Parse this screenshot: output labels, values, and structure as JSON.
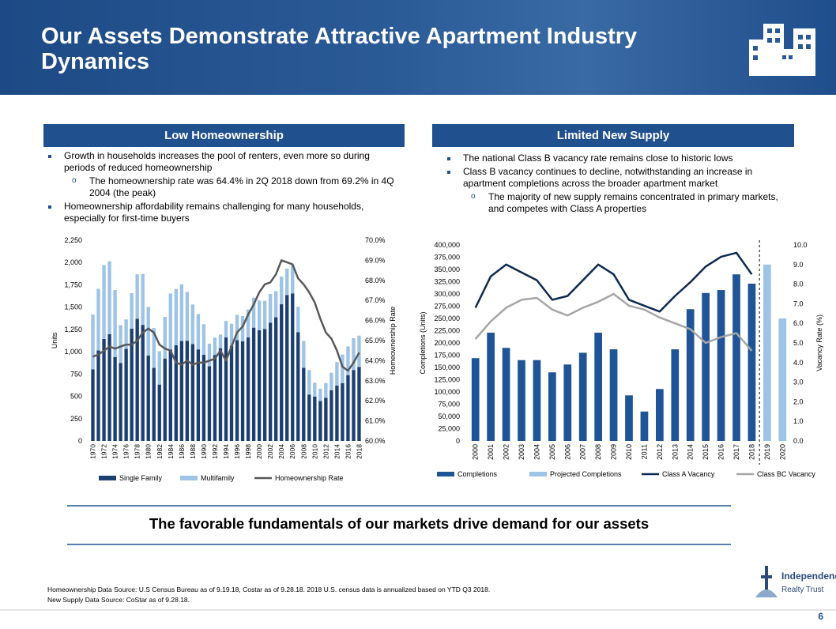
{
  "header": {
    "title": "Our Assets Demonstrate Attractive Apartment Industry Dynamics"
  },
  "left_panel": {
    "heading": "Low Homeownership",
    "bullets": [
      {
        "text": "Growth in households increases the pool of renters, even more so during periods of reduced homeownership",
        "subitems": [
          "The homeownership rate was 64.4% in 2Q 2018 down from 69.2% in 4Q 2004 (the peak)"
        ]
      },
      {
        "text": "Homeownership affordability remains challenging for many households, especially for first-time buyers"
      }
    ]
  },
  "right_panel": {
    "heading": "Limited New Supply",
    "bullets": [
      {
        "text": "The national Class B vacancy rate remains close to historic lows"
      },
      {
        "text": "Class B vacancy continues to decline, notwithstanding an increase in apartment completions across the broader apartment market",
        "subitems": [
          "The majority of new supply remains concentrated in primary markets, and competes with Class A properties"
        ]
      }
    ]
  },
  "chart_data": [
    {
      "type": "bar",
      "stacked": true,
      "y_label": "Units",
      "y2_label": "Homeownership Rate",
      "categories": [
        "1970",
        null,
        "1972",
        null,
        "1974",
        null,
        "1976",
        null,
        "1978",
        null,
        "1980",
        null,
        "1982",
        null,
        "1984",
        null,
        "1986",
        null,
        "1988",
        null,
        "1990",
        null,
        "1992",
        null,
        "1994",
        null,
        "1996",
        null,
        "1998",
        null,
        "2000",
        null,
        "2002",
        null,
        "2004",
        null,
        "2006",
        null,
        "2008",
        null,
        "2010",
        null,
        "2012",
        null,
        "2014",
        null,
        "2016",
        null,
        "2018"
      ],
      "series": [
        {
          "name": "Single Family",
          "type": "bar",
          "color": "#1c3f72",
          "values": [
            802,
            1014,
            1143,
            1197,
            940,
            875,
            1034,
            1258,
            1369,
            1301,
            957,
            819,
            632,
            924,
            1025,
            1072,
            1120,
            1123,
            1085,
            1026,
            966,
            838,
            964,
            1039,
            1160,
            1066,
            1129,
            1116,
            1160,
            1270,
            1242,
            1256,
            1325,
            1386,
            1532,
            1636,
            1654,
            1218,
            819,
            520,
            496,
            447,
            483,
            569,
            620,
            648,
            738,
            795,
            830
          ]
        },
        {
          "name": "Multifamily",
          "type": "bar",
          "color": "#9dc3e6",
          "values": [
            616,
            692,
            828,
            817,
            752,
            422,
            328,
            399,
            499,
            570,
            545,
            447,
            374,
            466,
            627,
            631,
            636,
            546,
            445,
            397,
            342,
            253,
            194,
            154,
            187,
            247,
            284,
            284,
            314,
            335,
            332,
            315,
            323,
            293,
            310,
            295,
            325,
            285,
            301,
            274,
            156,
            138,
            166,
            195,
            264,
            320,
            321,
            357,
            350
          ]
        },
        {
          "name": "Homeownership Rate",
          "type": "line",
          "axis": "y2",
          "color": "#595959",
          "values": [
            64.2,
            64.3,
            64.5,
            64.7,
            64.6,
            64.7,
            64.8,
            64.8,
            65.0,
            65.4,
            65.6,
            65.4,
            64.8,
            64.6,
            64.5,
            63.9,
            63.8,
            64.0,
            63.8,
            63.9,
            63.9,
            64.0,
            64.1,
            64.5,
            64.0,
            64.7,
            65.4,
            65.7,
            66.3,
            66.8,
            67.4,
            67.8,
            67.9,
            68.3,
            69.0,
            68.9,
            68.8,
            68.1,
            67.8,
            67.4,
            66.9,
            66.1,
            65.4,
            65.1,
            64.5,
            63.7,
            63.5,
            63.9,
            64.4
          ]
        }
      ],
      "ylim": [
        0,
        2250
      ],
      "yticks": [
        0,
        250,
        500,
        750,
        {
          "value": 1000,
          "label": "1,000"
        },
        {
          "value": 1250,
          "label": "1,250"
        },
        {
          "value": 1500,
          "label": "1,500"
        },
        {
          "value": 1750,
          "label": "1,750"
        },
        {
          "value": 2000,
          "label": "2,000"
        },
        {
          "value": 2250,
          "label": "2,250"
        }
      ],
      "y2lim": [
        60,
        70
      ],
      "y2ticks": [
        {
          "value": 60,
          "label": "60.0%"
        },
        {
          "value": 61,
          "label": "61.0%"
        },
        {
          "value": 62,
          "label": "62.0%"
        },
        {
          "value": 63,
          "label": "63.0%"
        },
        {
          "value": 64,
          "label": "64.0%"
        },
        {
          "value": 65,
          "label": "65.0%"
        },
        {
          "value": 66,
          "label": "66.0%"
        },
        {
          "value": 67,
          "label": "67.0%"
        },
        {
          "value": 68,
          "label": "68.0%"
        },
        {
          "value": 69,
          "label": "69.0%"
        },
        {
          "value": 70,
          "label": "70.0%"
        }
      ]
    },
    {
      "type": "bar",
      "stacked": false,
      "y_label": "Completions (Units)",
      "y2_label": "Vacancy Rate (%)",
      "categories": [
        "2000",
        "2001",
        "2002",
        "2003",
        "2004",
        "2005",
        "2006",
        "2007",
        "2008",
        "2009",
        "2010",
        "2011",
        "2012",
        "2013",
        "2014",
        "2015",
        "2016",
        "2017",
        "2018",
        "2019",
        "2020"
      ],
      "series": [
        {
          "name": "Completions",
          "type": "bar",
          "color": "#1f5597",
          "values": [
            169000,
            221000,
            190000,
            165000,
            165000,
            140000,
            156000,
            180000,
            221000,
            187000,
            93000,
            60000,
            106000,
            187000,
            269000,
            302000,
            308000,
            340000,
            321000,
            null,
            null
          ]
        },
        {
          "name": "Projected Completions",
          "type": "bar",
          "color": "#9dc3e6",
          "values": [
            null,
            null,
            null,
            null,
            null,
            null,
            null,
            null,
            null,
            null,
            null,
            null,
            null,
            null,
            null,
            null,
            null,
            null,
            null,
            360000,
            250000
          ]
        },
        {
          "name": "Class A Vacancy",
          "type": "line",
          "axis": "y2",
          "color": "#0d2a52",
          "values": [
            6.8,
            8.4,
            9.0,
            8.6,
            8.2,
            7.2,
            7.4,
            8.2,
            9.0,
            8.5,
            7.2,
            6.9,
            6.6,
            7.4,
            8.1,
            8.9,
            9.4,
            9.6,
            8.5,
            null,
            null
          ]
        },
        {
          "name": "Class BC Vacancy",
          "type": "line",
          "axis": "y2",
          "color": "#a6a6a6",
          "values": [
            5.2,
            6.1,
            6.8,
            7.2,
            7.3,
            6.7,
            6.4,
            6.8,
            7.1,
            7.5,
            6.9,
            6.7,
            6.3,
            6.0,
            5.7,
            5.0,
            5.3,
            5.5,
            4.6,
            null,
            null
          ]
        }
      ],
      "ylim": [
        0,
        400000
      ],
      "yticks": [
        0,
        {
          "value": 25000,
          "label": "25,000"
        },
        {
          "value": 50000,
          "label": "50,000"
        },
        {
          "value": 75000,
          "label": "75,000"
        },
        {
          "value": 100000,
          "label": "100,000"
        },
        {
          "value": 125000,
          "label": "125,000"
        },
        {
          "value": 150000,
          "label": "150,000"
        },
        {
          "value": 175000,
          "label": "175,000"
        },
        {
          "value": 200000,
          "label": "200,000"
        },
        {
          "value": 225000,
          "label": "225,000"
        },
        {
          "value": 250000,
          "label": "250,000"
        },
        {
          "value": 275000,
          "label": "275,000"
        },
        {
          "value": 300000,
          "label": "300,000"
        },
        {
          "value": 325000,
          "label": "325,000"
        },
        {
          "value": 350000,
          "label": "350,000"
        },
        {
          "value": 375000,
          "label": "375,000"
        },
        {
          "value": 400000,
          "label": "400,000"
        }
      ],
      "y2lim": [
        0,
        10
      ],
      "y2ticks": [
        {
          "value": 0,
          "label": "0.0"
        },
        {
          "value": 1,
          "label": "1.0"
        },
        {
          "value": 2,
          "label": "2.0"
        },
        {
          "value": 3,
          "label": "3.0"
        },
        {
          "value": 4,
          "label": "4.0"
        },
        {
          "value": 5,
          "label": "5.0"
        },
        {
          "value": 6,
          "label": "6.0"
        },
        {
          "value": 7,
          "label": "7.0"
        },
        {
          "value": 8,
          "label": "8.0"
        },
        {
          "value": 9,
          "label": "9.0"
        },
        {
          "value": 10,
          "label": "10.0"
        }
      ]
    }
  ],
  "banner": "The favorable fundamentals of our markets drive demand for our assets",
  "footnotes": [
    "Homeownership Data Source: U.S Census Bureau as of 9.19.18, Costar as of 9.28.18. 2018 U.S. census data is annualized based on YTD Q3 2018.",
    "New Supply Data Source: CoStar as of 9.28.18."
  ],
  "logo": [
    "Independence",
    "Realty Trust"
  ],
  "page_number": "6"
}
